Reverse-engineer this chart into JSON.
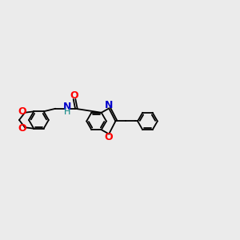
{
  "bg_color": "#ebebeb",
  "bond_color": "#000000",
  "o_color": "#ff0000",
  "n_color": "#0000cc",
  "lw": 1.3,
  "ring_r": 0.42,
  "figsize": [
    3.0,
    3.0
  ],
  "dpi": 100,
  "xlim": [
    0,
    10
  ],
  "ylim": [
    2,
    8
  ]
}
